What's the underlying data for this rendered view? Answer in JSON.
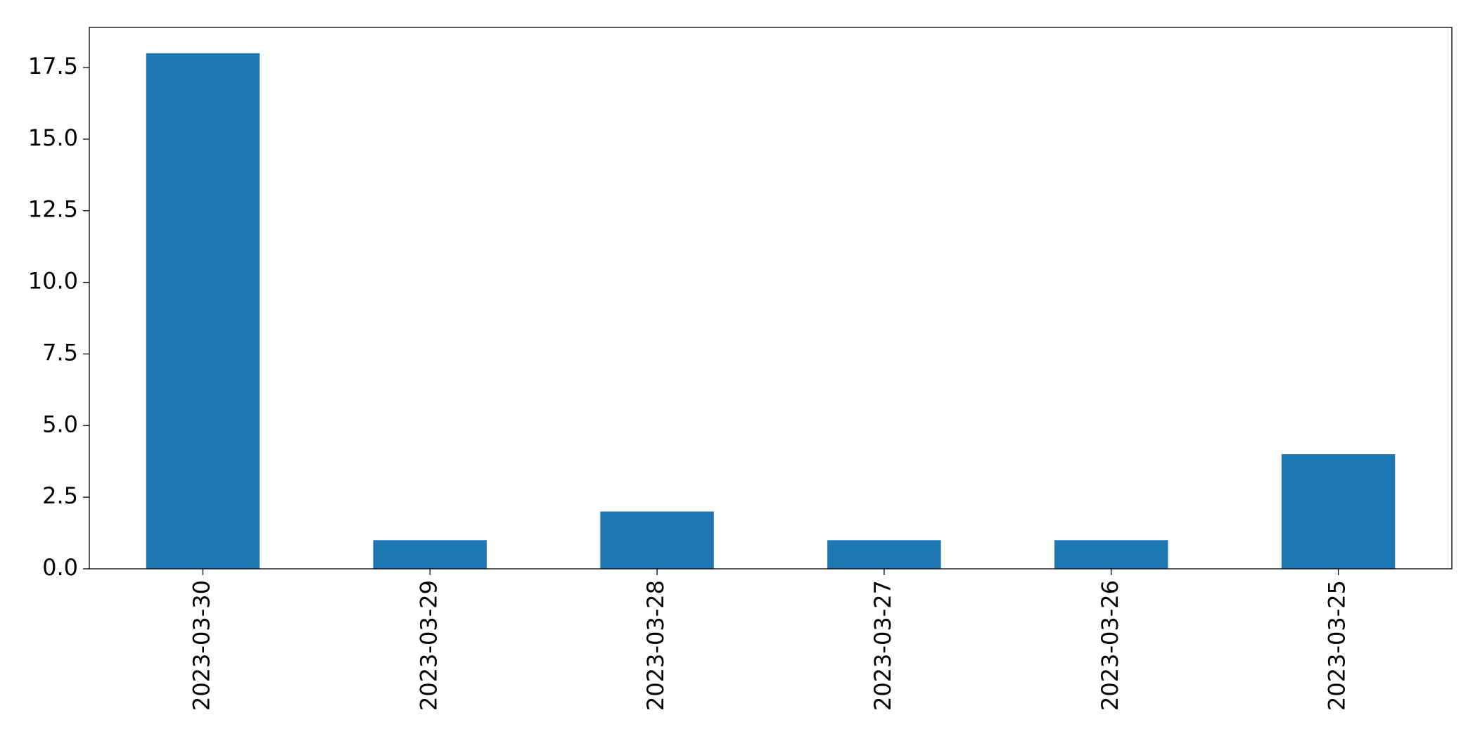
{
  "chart_data": {
    "type": "bar",
    "categories": [
      "2023-03-30",
      "2023-03-29",
      "2023-03-28",
      "2023-03-27",
      "2023-03-26",
      "2023-03-25"
    ],
    "values": [
      18,
      1,
      2,
      1,
      1,
      4
    ],
    "color": "#1f77b4",
    "ylim": [
      0,
      18.9
    ],
    "yticks": [
      {
        "value": 0,
        "label": "0.0"
      },
      2.5,
      {
        "value": 5,
        "label": "5.0"
      },
      7.5,
      {
        "value": 10,
        "label": "10.0"
      },
      12.5,
      {
        "value": 15,
        "label": "15.0"
      },
      17.5
    ],
    "grid": false
  }
}
